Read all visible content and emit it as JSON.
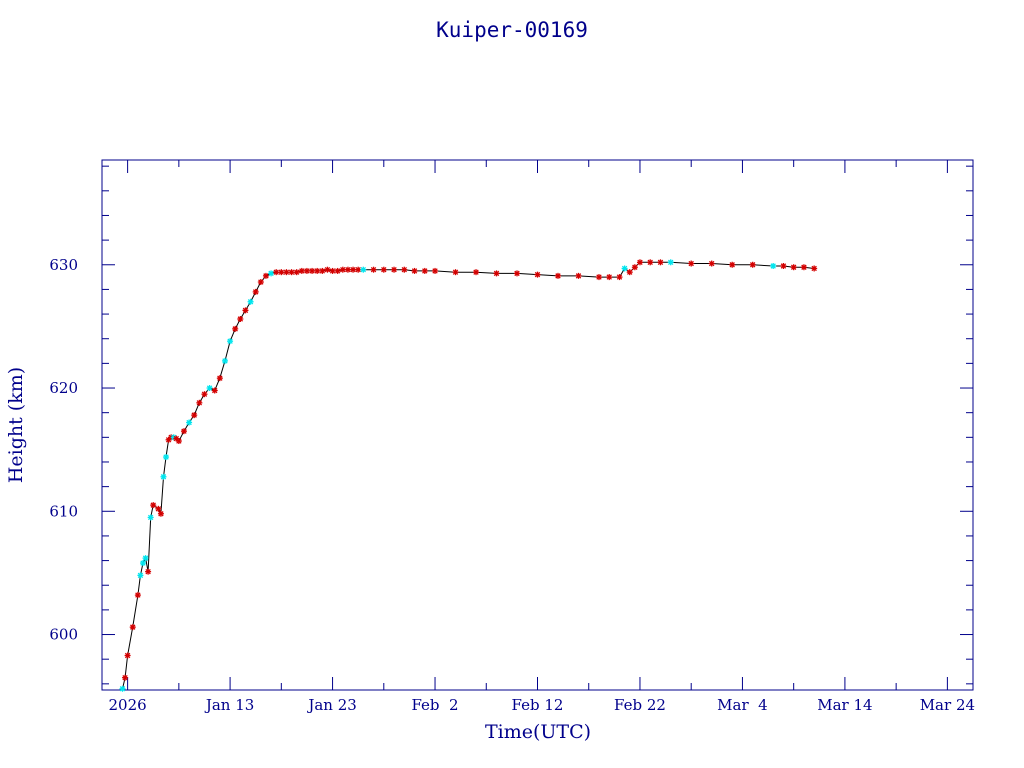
{
  "chart_data": {
    "type": "scatter",
    "title": "Kuiper-00169",
    "xlabel": "Time(UTC)",
    "ylabel": "Height (km)",
    "x_range_days_from_jan6": [
      -5.5,
      79.5
    ],
    "ylim": [
      595.5,
      638.5
    ],
    "x_tick_labels": [
      "2026",
      "Jan 13",
      "Jan 23",
      "Feb  2",
      "Feb 12",
      "Feb 22",
      "Mar  4",
      "Mar 14",
      "Mar 24"
    ],
    "x_tick_dates": [
      "2026-01-03",
      "2026-01-13",
      "2026-01-23",
      "2026-02-02",
      "2026-02-12",
      "2026-02-22",
      "2026-03-04",
      "2026-03-14",
      "2026-03-24"
    ],
    "y_ticks": [
      600,
      610,
      620,
      630
    ],
    "grid": false,
    "colors": {
      "axis": "#00008b",
      "line": "#000000",
      "marker_primary": "#d40000",
      "marker_secondary": "#00e5ee"
    },
    "series": [
      {
        "x": [
          "2026-01-02T12:00",
          "2026-01-02T18:00",
          "2026-01-03T00:00",
          "2026-01-03T12:00",
          "2026-01-04T00:00",
          "2026-01-04T06:00",
          "2026-01-04T12:00",
          "2026-01-04T18:00",
          "2026-01-05T00:00",
          "2026-01-05T06:00",
          "2026-01-05T12:00",
          "2026-01-06T00:00",
          "2026-01-06T06:00",
          "2026-01-06T12:00",
          "2026-01-06T18:00",
          "2026-01-07T00:00",
          "2026-01-07T06:00",
          "2026-01-07T12:00",
          "2026-01-07T18:00",
          "2026-01-08T00:00",
          "2026-01-08T12:00",
          "2026-01-09T00:00",
          "2026-01-09T12:00",
          "2026-01-10T00:00",
          "2026-01-10T12:00",
          "2026-01-11T00:00",
          "2026-01-11T12:00",
          "2026-01-12T00:00",
          "2026-01-12T12:00",
          "2026-01-13T00:00",
          "2026-01-13T12:00",
          "2026-01-14T00:00",
          "2026-01-14T12:00",
          "2026-01-15T00:00",
          "2026-01-15T12:00",
          "2026-01-16T00:00",
          "2026-01-16T12:00",
          "2026-01-17T00:00",
          "2026-01-17T12:00",
          "2026-01-18T00:00",
          "2026-01-18T12:00",
          "2026-01-19T00:00",
          "2026-01-19T12:00",
          "2026-01-20T00:00",
          "2026-01-20T12:00",
          "2026-01-21T00:00",
          "2026-01-21T12:00",
          "2026-01-22T00:00",
          "2026-01-22T12:00",
          "2026-01-23T00:00",
          "2026-01-23T12:00",
          "2026-01-24T00:00",
          "2026-01-24T12:00",
          "2026-01-25T00:00",
          "2026-01-25T12:00",
          "2026-01-26T00:00",
          "2026-01-27T00:00",
          "2026-01-28T00:00",
          "2026-01-29T00:00",
          "2026-01-30T00:00",
          "2026-01-31T00:00",
          "2026-02-01T00:00",
          "2026-02-02T00:00",
          "2026-02-04T00:00",
          "2026-02-06T00:00",
          "2026-02-08T00:00",
          "2026-02-10T00:00",
          "2026-02-12T00:00",
          "2026-02-14T00:00",
          "2026-02-16T00:00",
          "2026-02-18T00:00",
          "2026-02-19T00:00",
          "2026-02-20T00:00",
          "2026-02-20T12:00",
          "2026-02-21T00:00",
          "2026-02-21T12:00",
          "2026-02-22T00:00",
          "2026-02-23T00:00",
          "2026-02-24T00:00",
          "2026-02-25T00:00",
          "2026-02-27T00:00",
          "2026-03-01T00:00",
          "2026-03-03T00:00",
          "2026-03-05T00:00",
          "2026-03-07T00:00",
          "2026-03-08T00:00",
          "2026-03-09T00:00",
          "2026-03-10T00:00",
          "2026-03-11T00:00"
        ],
        "y": [
          595.6,
          596.5,
          598.3,
          600.6,
          603.2,
          604.8,
          605.8,
          606.2,
          605.1,
          609.5,
          610.5,
          610.2,
          609.8,
          612.8,
          614.4,
          615.8,
          616.0,
          616.0,
          615.9,
          615.7,
          616.5,
          617.2,
          617.8,
          618.8,
          619.5,
          620.0,
          619.8,
          620.8,
          622.2,
          623.8,
          624.8,
          625.6,
          626.3,
          627.0,
          627.8,
          628.6,
          629.1,
          629.3,
          629.4,
          629.4,
          629.4,
          629.4,
          629.4,
          629.5,
          629.5,
          629.5,
          629.5,
          629.5,
          629.6,
          629.5,
          629.5,
          629.6,
          629.6,
          629.6,
          629.6,
          629.6,
          629.6,
          629.6,
          629.6,
          629.6,
          629.5,
          629.5,
          629.5,
          629.4,
          629.4,
          629.3,
          629.3,
          629.2,
          629.1,
          629.1,
          629.0,
          629.0,
          629.0,
          629.7,
          629.4,
          629.8,
          630.2,
          630.2,
          630.2,
          630.2,
          630.1,
          630.1,
          630.0,
          630.0,
          629.9,
          629.9,
          629.8,
          629.8,
          629.7
        ]
      }
    ],
    "secondary_marker_indices": [
      0,
      5,
      6,
      7,
      9,
      13,
      14,
      17,
      21,
      25,
      28,
      29,
      33,
      37,
      55,
      73,
      79,
      84
    ]
  }
}
